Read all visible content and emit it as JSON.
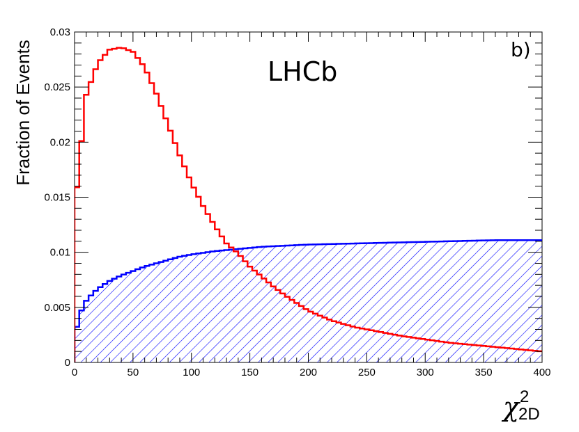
{
  "chart_data": {
    "type": "line",
    "ylabel": "Fraction of Events",
    "xlabel": {
      "symbol": "χ",
      "superscript": "2",
      "subscript": "2D"
    },
    "annotations": {
      "experiment": "LHCb",
      "panel": "b)"
    },
    "xlim": [
      0,
      400
    ],
    "ylim": [
      0,
      0.03
    ],
    "x_ticks": [
      "0",
      "50",
      "100",
      "150",
      "200",
      "250",
      "300",
      "350",
      "400"
    ],
    "y_ticks": [
      "0",
      "0.005",
      "0.01",
      "0.015",
      "0.02",
      "0.025",
      "0.03"
    ],
    "bin_width": 4,
    "series": [
      {
        "color": "#ff0000",
        "fill": "none",
        "x": [
          0,
          10,
          20,
          30,
          40,
          50,
          60,
          70,
          80,
          90,
          100,
          110,
          120,
          130,
          140,
          150,
          160,
          170,
          180,
          190,
          200,
          220,
          240,
          260,
          280,
          300,
          320,
          340,
          360,
          380,
          400
        ],
        "values": [
          0.0138,
          0.0243,
          0.0272,
          0.0284,
          0.0286,
          0.0282,
          0.0268,
          0.0244,
          0.0216,
          0.0188,
          0.0163,
          0.0142,
          0.0124,
          0.0108,
          0.0099,
          0.0087,
          0.0078,
          0.0069,
          0.0061,
          0.0054,
          0.0047,
          0.0038,
          0.0032,
          0.0028,
          0.0024,
          0.0021,
          0.0018,
          0.0016,
          0.0014,
          0.0012,
          0.001
        ]
      },
      {
        "color": "#0000ff",
        "fill": "hatched",
        "x": [
          0,
          5,
          10,
          15,
          20,
          30,
          40,
          50,
          60,
          70,
          80,
          90,
          100,
          120,
          140,
          160,
          180,
          200,
          240,
          280,
          320,
          360,
          400
        ],
        "values": [
          0.0024,
          0.0045,
          0.0056,
          0.0062,
          0.0067,
          0.0074,
          0.0079,
          0.0083,
          0.0087,
          0.009,
          0.0093,
          0.0096,
          0.0098,
          0.0101,
          0.0103,
          0.0105,
          0.0106,
          0.0107,
          0.0108,
          0.0109,
          0.011,
          0.0111,
          0.0111
        ]
      }
    ]
  }
}
